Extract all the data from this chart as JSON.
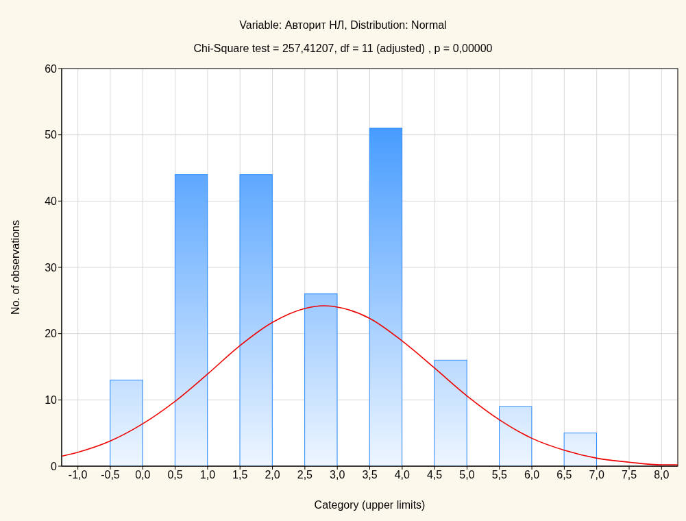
{
  "chart_data": {
    "type": "histogram",
    "title": "Variable: Авторит НЛ, Distribution: Normal",
    "subtitle": "Chi-Square test = 257,41207, df = 11 (adjusted) , p = 0,00000",
    "xlabel": "Category (upper limits)",
    "ylabel": "No. of observations",
    "bins": [
      -1.0,
      -0.5,
      0.0,
      0.5,
      1.0,
      1.5,
      2.0,
      2.5,
      3.0,
      3.5,
      4.0,
      4.5,
      5.0,
      5.5,
      6.0,
      6.5,
      7.0,
      7.5,
      8.0
    ],
    "series": [
      {
        "type": "histogram",
        "color": "#2a8cff",
        "values": [
          0,
          13,
          0,
          44,
          0,
          44,
          0,
          26,
          0,
          51,
          0,
          16,
          0,
          9,
          0,
          5,
          0,
          0
        ]
      },
      {
        "type": "line",
        "color": "#ee0000",
        "x": [
          -1.25,
          -1.0,
          -0.5,
          0.0,
          0.5,
          1.0,
          1.5,
          2.0,
          2.5,
          2.8,
          3.0,
          3.5,
          4.0,
          4.5,
          5.0,
          5.5,
          6.0,
          6.5,
          7.0,
          7.5,
          8.0,
          8.25
        ],
        "values": [
          1.5,
          2.1,
          3.8,
          6.4,
          9.8,
          13.9,
          18.2,
          21.7,
          23.8,
          24.2,
          24.0,
          22.3,
          18.9,
          14.8,
          10.6,
          7.0,
          4.2,
          2.4,
          1.2,
          0.6,
          0.2,
          0.2
        ]
      }
    ],
    "xlim": [
      -1.25,
      8.25
    ],
    "xticks": [
      {
        "value": -1.0,
        "label": "-1,0"
      },
      {
        "value": -0.5,
        "label": "-0,5"
      },
      {
        "value": 0.0,
        "label": "0,0"
      },
      {
        "value": 0.5,
        "label": "0,5"
      },
      {
        "value": 1.0,
        "label": "1,0"
      },
      {
        "value": 1.5,
        "label": "1,5"
      },
      {
        "value": 2.0,
        "label": "2,0"
      },
      {
        "value": 2.5,
        "label": "2,5"
      },
      {
        "value": 3.0,
        "label": "3,0"
      },
      {
        "value": 3.5,
        "label": "3,5"
      },
      {
        "value": 4.0,
        "label": "4,0"
      },
      {
        "value": 4.5,
        "label": "4,5"
      },
      {
        "value": 5.0,
        "label": "5,0"
      },
      {
        "value": 5.5,
        "label": "5,5"
      },
      {
        "value": 6.0,
        "label": "6,0"
      },
      {
        "value": 6.5,
        "label": "6,5"
      },
      {
        "value": 7.0,
        "label": "7,0"
      },
      {
        "value": 7.5,
        "label": "7,5"
      },
      {
        "value": 8.0,
        "label": "8,0"
      }
    ],
    "ylim": [
      0,
      60
    ],
    "yticks": [
      0,
      10,
      20,
      30,
      40,
      50,
      60
    ],
    "grid": true,
    "marker": "none",
    "line_style": "solid"
  }
}
